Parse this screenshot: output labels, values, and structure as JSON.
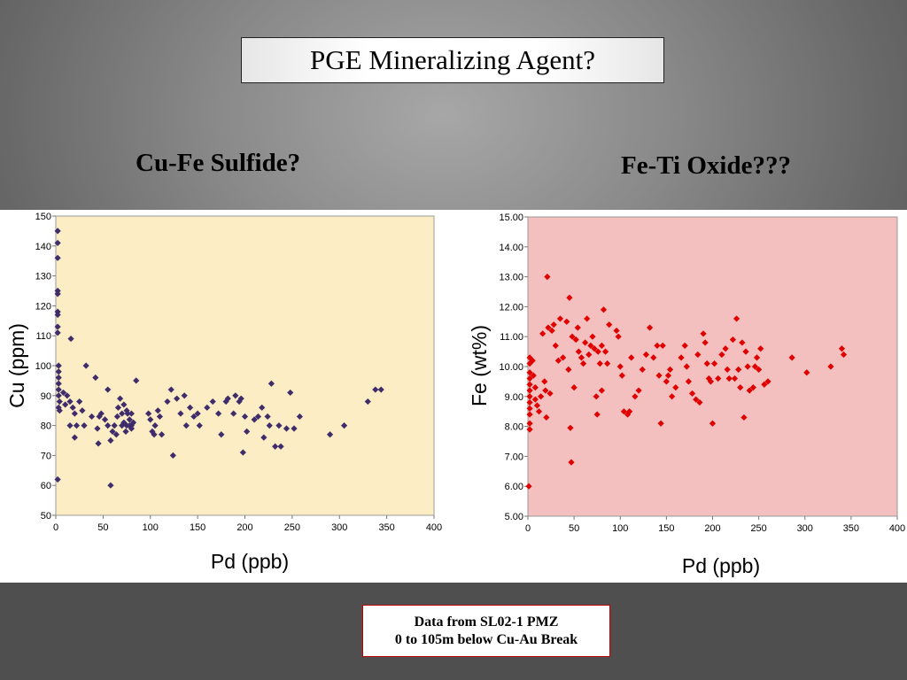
{
  "title": "PGE Mineralizing Agent?",
  "subtitles": {
    "left": "Cu-Fe Sulfide?",
    "right": "Fe-Ti Oxide???"
  },
  "footer": {
    "line1": "Data from SL02-1 PMZ",
    "line2": "0 to 105m below Cu-Au Break"
  },
  "chart_data": [
    {
      "type": "scatter",
      "title": "",
      "xlabel": "Pd (ppb)",
      "ylabel": "Cu (ppm)",
      "xlim": [
        0,
        400
      ],
      "ylim": [
        50,
        150
      ],
      "xticks": [
        0,
        50,
        100,
        150,
        200,
        250,
        300,
        350,
        400
      ],
      "yticks": [
        50,
        60,
        70,
        80,
        90,
        100,
        110,
        120,
        130,
        140,
        150
      ],
      "tick_decimals": 0,
      "grid": false,
      "legend": "none",
      "plot_background": "#fcedc4",
      "marker_color": "#3f2d6b",
      "marker": "diamond",
      "points": [
        [
          2,
          145
        ],
        [
          2,
          141
        ],
        [
          2,
          136
        ],
        [
          2,
          125
        ],
        [
          2,
          124
        ],
        [
          2,
          118
        ],
        [
          2,
          117
        ],
        [
          2,
          113
        ],
        [
          2,
          111
        ],
        [
          3,
          100
        ],
        [
          3,
          98
        ],
        [
          3,
          96
        ],
        [
          3,
          94
        ],
        [
          3,
          92
        ],
        [
          3,
          90
        ],
        [
          4,
          88
        ],
        [
          3,
          86
        ],
        [
          4,
          85
        ],
        [
          2,
          62
        ],
        [
          8,
          91
        ],
        [
          10,
          87
        ],
        [
          12,
          90
        ],
        [
          15,
          88
        ],
        [
          15,
          80
        ],
        [
          16,
          109
        ],
        [
          18,
          86
        ],
        [
          20,
          84
        ],
        [
          20,
          76
        ],
        [
          22,
          80
        ],
        [
          25,
          88
        ],
        [
          28,
          85
        ],
        [
          30,
          80
        ],
        [
          32,
          100
        ],
        [
          38,
          83
        ],
        [
          42,
          96
        ],
        [
          44,
          79
        ],
        [
          45,
          74
        ],
        [
          46,
          83
        ],
        [
          48,
          84
        ],
        [
          52,
          82
        ],
        [
          55,
          92
        ],
        [
          55,
          80
        ],
        [
          58,
          60
        ],
        [
          58,
          75
        ],
        [
          60,
          78
        ],
        [
          62,
          80
        ],
        [
          64,
          77
        ],
        [
          65,
          83
        ],
        [
          66,
          86
        ],
        [
          68,
          89
        ],
        [
          70,
          84
        ],
        [
          70,
          80
        ],
        [
          72,
          87
        ],
        [
          72,
          81
        ],
        [
          74,
          78
        ],
        [
          75,
          85
        ],
        [
          75,
          80
        ],
        [
          76,
          84
        ],
        [
          78,
          82
        ],
        [
          78,
          80
        ],
        [
          80,
          84
        ],
        [
          80,
          80
        ],
        [
          80,
          79
        ],
        [
          82,
          81
        ],
        [
          85,
          95
        ],
        [
          98,
          84
        ],
        [
          100,
          82
        ],
        [
          102,
          78
        ],
        [
          104,
          77
        ],
        [
          105,
          80
        ],
        [
          108,
          85
        ],
        [
          110,
          83
        ],
        [
          112,
          77
        ],
        [
          118,
          88
        ],
        [
          122,
          92
        ],
        [
          124,
          70
        ],
        [
          128,
          89
        ],
        [
          132,
          84
        ],
        [
          136,
          90
        ],
        [
          138,
          80
        ],
        [
          142,
          86
        ],
        [
          146,
          83
        ],
        [
          150,
          84
        ],
        [
          152,
          80
        ],
        [
          160,
          86
        ],
        [
          166,
          88
        ],
        [
          172,
          84
        ],
        [
          175,
          77
        ],
        [
          180,
          88
        ],
        [
          182,
          89
        ],
        [
          188,
          84
        ],
        [
          190,
          90
        ],
        [
          194,
          88
        ],
        [
          196,
          89
        ],
        [
          198,
          71
        ],
        [
          200,
          83
        ],
        [
          202,
          78
        ],
        [
          210,
          82
        ],
        [
          214,
          83
        ],
        [
          218,
          86
        ],
        [
          220,
          76
        ],
        [
          224,
          83
        ],
        [
          226,
          80
        ],
        [
          228,
          94
        ],
        [
          232,
          73
        ],
        [
          236,
          80
        ],
        [
          238,
          73
        ],
        [
          244,
          79
        ],
        [
          248,
          91
        ],
        [
          252,
          79
        ],
        [
          258,
          83
        ],
        [
          290,
          77
        ],
        [
          305,
          80
        ],
        [
          330,
          88
        ],
        [
          338,
          92
        ],
        [
          344,
          92
        ]
      ]
    },
    {
      "type": "scatter",
      "title": "",
      "xlabel": "Pd (ppb)",
      "ylabel": "Fe  (wt%)",
      "xlim": [
        0,
        400
      ],
      "ylim": [
        5,
        15
      ],
      "xticks": [
        0,
        50,
        100,
        150,
        200,
        250,
        300,
        350,
        400
      ],
      "yticks": [
        5,
        6,
        7,
        8,
        9,
        10,
        11,
        12,
        13,
        14,
        15
      ],
      "tick_decimals": 2,
      "grid": false,
      "legend": "none",
      "plot_background": "#f4bfbf",
      "marker_color": "#e00000",
      "marker": "diamond",
      "points": [
        [
          2,
          10.3
        ],
        [
          2,
          10.1
        ],
        [
          2,
          9.8
        ],
        [
          2,
          9.6
        ],
        [
          2,
          9.4
        ],
        [
          2,
          9.2
        ],
        [
          2,
          9.0
        ],
        [
          2,
          8.8
        ],
        [
          2,
          8.6
        ],
        [
          2,
          8.4
        ],
        [
          2,
          8.1
        ],
        [
          2,
          7.9
        ],
        [
          1,
          6.0
        ],
        [
          5,
          10.2
        ],
        [
          6,
          9.7
        ],
        [
          8,
          9.3
        ],
        [
          8,
          8.9
        ],
        [
          10,
          8.7
        ],
        [
          12,
          8.5
        ],
        [
          14,
          9.0
        ],
        [
          16,
          11.1
        ],
        [
          18,
          9.5
        ],
        [
          19,
          9.2
        ],
        [
          20,
          8.3
        ],
        [
          21,
          13.0
        ],
        [
          22,
          11.3
        ],
        [
          24,
          9.1
        ],
        [
          26,
          11.2
        ],
        [
          28,
          11.4
        ],
        [
          30,
          10.7
        ],
        [
          33,
          10.2
        ],
        [
          35,
          11.6
        ],
        [
          38,
          10.3
        ],
        [
          42,
          11.5
        ],
        [
          44,
          9.9
        ],
        [
          45,
          12.3
        ],
        [
          46,
          7.95
        ],
        [
          47,
          6.8
        ],
        [
          48,
          11.0
        ],
        [
          50,
          9.3
        ],
        [
          52,
          10.9
        ],
        [
          54,
          11.3
        ],
        [
          55,
          10.5
        ],
        [
          58,
          10.3
        ],
        [
          60,
          10.1
        ],
        [
          62,
          10.8
        ],
        [
          64,
          11.6
        ],
        [
          66,
          10.4
        ],
        [
          68,
          10.7
        ],
        [
          70,
          11.0
        ],
        [
          72,
          10.6
        ],
        [
          74,
          9.0
        ],
        [
          75,
          8.4
        ],
        [
          76,
          10.5
        ],
        [
          78,
          10.1
        ],
        [
          80,
          10.7
        ],
        [
          80,
          9.2
        ],
        [
          82,
          11.9
        ],
        [
          84,
          10.5
        ],
        [
          86,
          10.1
        ],
        [
          88,
          11.4
        ],
        [
          96,
          11.2
        ],
        [
          98,
          11.0
        ],
        [
          100,
          10.0
        ],
        [
          102,
          9.7
        ],
        [
          104,
          8.5
        ],
        [
          108,
          8.4
        ],
        [
          110,
          8.5
        ],
        [
          112,
          10.3
        ],
        [
          116,
          9.0
        ],
        [
          120,
          9.2
        ],
        [
          124,
          9.9
        ],
        [
          128,
          10.4
        ],
        [
          132,
          11.3
        ],
        [
          136,
          10.3
        ],
        [
          140,
          10.7
        ],
        [
          142,
          9.7
        ],
        [
          144,
          8.1
        ],
        [
          146,
          10.7
        ],
        [
          150,
          9.5
        ],
        [
          152,
          9.7
        ],
        [
          154,
          9.9
        ],
        [
          156,
          9.0
        ],
        [
          160,
          9.3
        ],
        [
          166,
          10.3
        ],
        [
          170,
          10.7
        ],
        [
          172,
          10.0
        ],
        [
          174,
          9.5
        ],
        [
          178,
          9.1
        ],
        [
          182,
          8.9
        ],
        [
          184,
          10.4
        ],
        [
          186,
          8.8
        ],
        [
          190,
          11.1
        ],
        [
          192,
          10.8
        ],
        [
          194,
          10.1
        ],
        [
          196,
          9.6
        ],
        [
          198,
          9.5
        ],
        [
          200,
          8.1
        ],
        [
          202,
          10.1
        ],
        [
          206,
          9.6
        ],
        [
          210,
          10.4
        ],
        [
          214,
          10.6
        ],
        [
          216,
          9.9
        ],
        [
          218,
          9.6
        ],
        [
          222,
          10.9
        ],
        [
          224,
          9.6
        ],
        [
          226,
          11.6
        ],
        [
          228,
          9.9
        ],
        [
          230,
          9.3
        ],
        [
          232,
          10.8
        ],
        [
          234,
          8.3
        ],
        [
          236,
          10.5
        ],
        [
          238,
          10.0
        ],
        [
          240,
          9.2
        ],
        [
          244,
          9.3
        ],
        [
          246,
          10.0
        ],
        [
          248,
          10.3
        ],
        [
          250,
          9.9
        ],
        [
          252,
          10.6
        ],
        [
          256,
          9.4
        ],
        [
          260,
          9.5
        ],
        [
          286,
          10.3
        ],
        [
          302,
          9.8
        ],
        [
          328,
          10.0
        ],
        [
          340,
          10.6
        ],
        [
          342,
          10.4
        ]
      ]
    }
  ]
}
